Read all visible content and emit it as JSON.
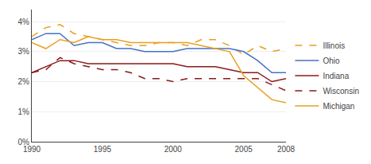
{
  "chart_data": {
    "type": "line",
    "x": [
      1990,
      1991,
      1992,
      1993,
      1994,
      1995,
      1996,
      1997,
      1998,
      1999,
      2000,
      2001,
      2002,
      2003,
      2004,
      2005,
      2006,
      2007,
      2008
    ],
    "series": [
      {
        "name": "Illinois",
        "color": "#E8A020",
        "line_style": "dashed",
        "values": [
          0.035,
          0.038,
          0.039,
          0.036,
          0.035,
          0.034,
          0.033,
          0.032,
          0.032,
          0.033,
          0.033,
          0.032,
          0.034,
          0.034,
          0.032,
          0.029,
          0.032,
          0.03,
          0.031
        ]
      },
      {
        "name": "Ohio",
        "color": "#4472C4",
        "line_style": "solid",
        "values": [
          0.034,
          0.036,
          0.036,
          0.032,
          0.033,
          0.033,
          0.031,
          0.031,
          0.03,
          0.03,
          0.03,
          0.031,
          0.031,
          0.031,
          0.031,
          0.03,
          0.027,
          0.023,
          0.023
        ]
      },
      {
        "name": "Indiana",
        "color": "#8B1A1A",
        "line_style": "solid",
        "values": [
          0.023,
          0.025,
          0.027,
          0.027,
          0.026,
          0.026,
          0.026,
          0.026,
          0.026,
          0.026,
          0.026,
          0.025,
          0.025,
          0.025,
          0.024,
          0.023,
          0.023,
          0.02,
          0.021
        ]
      },
      {
        "name": "Wisconsin",
        "color": "#8B1A1A",
        "line_style": "dashed",
        "values": [
          0.023,
          0.024,
          0.028,
          0.026,
          0.025,
          0.024,
          0.024,
          0.023,
          0.021,
          0.021,
          0.02,
          0.021,
          0.021,
          0.021,
          0.021,
          0.021,
          0.021,
          0.019,
          0.017
        ]
      },
      {
        "name": "Michigan",
        "color": "#E8A020",
        "line_style": "solid",
        "values": [
          0.033,
          0.031,
          0.034,
          0.033,
          0.035,
          0.034,
          0.034,
          0.033,
          0.033,
          0.033,
          0.033,
          0.033,
          0.032,
          0.031,
          0.03,
          0.022,
          0.018,
          0.014,
          0.013
        ]
      }
    ],
    "xlim": [
      1990,
      2008
    ],
    "xticks": [
      1990,
      1995,
      2000,
      2005,
      2008
    ],
    "ylim": [
      0,
      0.044
    ],
    "yticks": [
      {
        "value": 0,
        "label": "0%"
      },
      {
        "value": 0.01,
        "label": "1%"
      },
      {
        "value": 0.02,
        "label": "2%"
      },
      {
        "value": 0.03,
        "label": "3%"
      },
      {
        "value": 0.04,
        "label": "4%"
      }
    ],
    "grid": "y",
    "legend": "right"
  }
}
